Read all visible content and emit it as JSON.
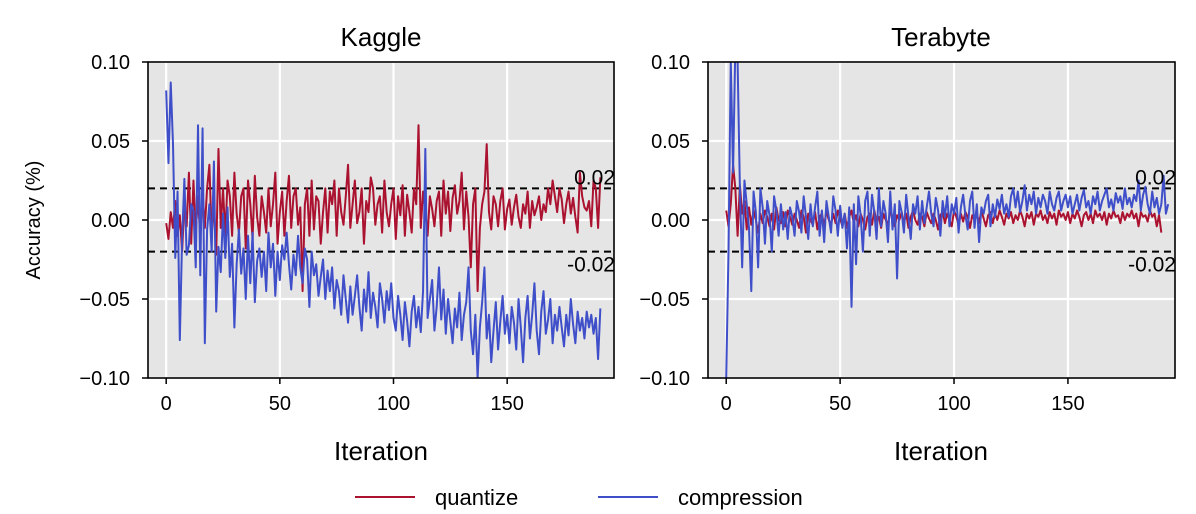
{
  "figure": {
    "legend": {
      "placement": "bottom-center",
      "entries": [
        {
          "label": "quantize",
          "color": "#ab1230"
        },
        {
          "label": "compression",
          "color": "#3f4fc9"
        }
      ]
    }
  },
  "chart_data": [
    {
      "type": "line",
      "title": "Kaggle",
      "xlabel": "Iteration",
      "ylabel": "Accuracy (%)",
      "xlim": [
        -8,
        197
      ],
      "ylim": [
        -0.1,
        0.1
      ],
      "xticks": [
        0,
        50,
        100,
        150
      ],
      "yticks": [
        0.1,
        0.05,
        0.0,
        -0.05,
        -0.1
      ],
      "ytick_labels": [
        "0.10",
        "0.05",
        "0.00",
        "−0.05",
        "−0.10"
      ],
      "grid": true,
      "reference_lines": [
        {
          "y": 0.02,
          "label": "0.02",
          "style": "dashed"
        },
        {
          "y": -0.02,
          "label": "-0.02",
          "style": "dashed"
        }
      ],
      "series": [
        {
          "name": "quantize",
          "color": "#ab1230",
          "x_start": 0,
          "values": [
            -0.002,
            -0.012,
            0.005,
            -0.005,
            0.012,
            -0.01,
            0.003,
            -0.02,
            0.01,
            -0.004,
            0.03,
            -0.015,
            0.025,
            -0.008,
            0.015,
            -0.012,
            0.018,
            -0.005,
            0.02,
            0.035,
            -0.01,
            0.01,
            -0.022,
            0.045,
            -0.005,
            0.02,
            -0.01,
            0.025,
            0.015,
            -0.01,
            0.03,
            0.004,
            -0.008,
            0.015,
            0.02,
            -0.018,
            0.025,
            0.01,
            -0.012,
            0.028,
            0.002,
            -0.01,
            0.015,
            0.005,
            -0.008,
            0.02,
            -0.004,
            0.01,
            0.03,
            -0.015,
            0.005,
            0.018,
            -0.01,
            0.012,
            0.028,
            -0.005,
            0.015,
            0.02,
            -0.003,
            0.008,
            -0.045,
            0.01,
            0.02,
            -0.01,
            0.025,
            -0.006,
            0.015,
            0.012,
            -0.015,
            0.005,
            0.02,
            -0.008,
            0.018,
            0.01,
            0.025,
            -0.01,
            0.02,
            0.005,
            -0.003,
            0.015,
            0.035,
            -0.005,
            0.01,
            0.025,
            -0.002,
            0.005,
            0.02,
            -0.015,
            0.012,
            0.005,
            0.027,
            0.02,
            -0.003,
            0.01,
            0.015,
            -0.008,
            0.025,
            0.005,
            -0.004,
            0.01,
            0.02,
            -0.012,
            0.015,
            0.003,
            0.022,
            -0.01,
            0.016,
            0.005,
            -0.008,
            0.02,
            0.01,
            0.06,
            -0.005,
            0.018,
            0.005,
            -0.01,
            0.015,
            0.007,
            -0.004,
            0.012,
            0.018,
            -0.01,
            0.025,
            0.004,
            0.018,
            -0.007,
            0.014,
            0.022,
            0.004,
            0.012,
            0.03,
            -0.006,
            0.018,
            0.002,
            -0.03,
            0.01,
            0.02,
            -0.045,
            -0.005,
            0.01,
            0.018,
            0.048,
            0.005,
            -0.006,
            0.015,
            0.01,
            -0.004,
            0.012,
            0.02,
            -0.006,
            0.007,
            0.013,
            -0.003,
            0.008,
            0.016,
            0.002,
            -0.005,
            0.01,
            0.004,
            0.018,
            -0.005,
            0.012,
            0.003,
            0.008,
            0.015,
            0.0,
            0.01,
            0.005,
            0.02,
            0.01,
            0.025,
            0.015,
            0.005,
            0.02,
            0.013,
            -0.002,
            0.01,
            0.018,
            0.004,
            0.014,
            0.002,
            -0.008,
            0.03,
            0.015,
            0.008,
            0.006,
            0.012,
            -0.004,
            0.025,
            0.02,
            -0.005,
            0.027
          ]
        },
        {
          "name": "compression",
          "color": "#3f4fc9",
          "x_start": 0,
          "values": [
            0.082,
            0.036,
            0.087,
            0.048,
            -0.024,
            0.018,
            -0.076,
            -0.012,
            0.026,
            -0.022,
            -0.016,
            0.01,
            0.006,
            -0.03,
            0.06,
            -0.035,
            0.058,
            -0.078,
            -0.006,
            0.01,
            -0.02,
            0.037,
            -0.058,
            -0.017,
            -0.033,
            0.004,
            -0.024,
            0.008,
            -0.036,
            -0.015,
            -0.068,
            -0.028,
            -0.006,
            -0.034,
            -0.018,
            -0.05,
            -0.01,
            -0.04,
            -0.008,
            -0.052,
            -0.026,
            -0.018,
            -0.036,
            -0.02,
            -0.045,
            -0.008,
            -0.03,
            -0.015,
            -0.048,
            -0.02,
            -0.038,
            -0.016,
            -0.025,
            -0.008,
            -0.028,
            -0.044,
            -0.022,
            -0.035,
            -0.01,
            -0.03,
            -0.04,
            -0.018,
            -0.025,
            -0.055,
            -0.02,
            -0.035,
            -0.028,
            -0.048,
            -0.036,
            -0.025,
            -0.05,
            -0.032,
            -0.045,
            -0.03,
            -0.056,
            -0.038,
            -0.045,
            -0.06,
            -0.035,
            -0.05,
            -0.065,
            -0.042,
            -0.06,
            -0.048,
            -0.035,
            -0.055,
            -0.07,
            -0.044,
            -0.058,
            -0.033,
            -0.062,
            -0.046,
            -0.055,
            -0.068,
            -0.04,
            -0.05,
            -0.065,
            -0.045,
            -0.057,
            -0.04,
            -0.062,
            -0.07,
            -0.048,
            -0.06,
            -0.076,
            -0.052,
            -0.064,
            -0.08,
            -0.058,
            -0.048,
            -0.068,
            -0.055,
            -0.071,
            -0.045,
            0.045,
            -0.062,
            -0.05,
            -0.038,
            -0.07,
            -0.055,
            -0.03,
            -0.063,
            -0.044,
            -0.072,
            -0.05,
            -0.064,
            -0.078,
            -0.056,
            -0.068,
            -0.046,
            -0.076,
            -0.06,
            -0.052,
            -0.03,
            -0.07,
            -0.085,
            -0.06,
            -0.1,
            -0.068,
            -0.052,
            -0.03,
            -0.075,
            -0.06,
            -0.09,
            -0.07,
            -0.052,
            -0.082,
            -0.064,
            -0.048,
            -0.072,
            -0.06,
            -0.078,
            -0.055,
            -0.065,
            -0.082,
            -0.05,
            -0.068,
            -0.09,
            -0.062,
            -0.048,
            -0.075,
            -0.06,
            -0.04,
            -0.07,
            -0.085,
            -0.058,
            -0.045,
            -0.072,
            -0.063,
            -0.05,
            -0.078,
            -0.06,
            -0.07,
            -0.055,
            -0.068,
            -0.08,
            -0.06,
            -0.073,
            -0.05,
            -0.066,
            -0.078,
            -0.058,
            -0.07,
            -0.062,
            -0.075,
            -0.058,
            -0.068,
            -0.06,
            -0.072,
            -0.062,
            -0.088,
            -0.056
          ]
        }
      ]
    },
    {
      "type": "line",
      "title": "Terabyte",
      "xlabel": "Iteration",
      "ylabel": "",
      "xlim": [
        -8,
        197
      ],
      "ylim": [
        -0.1,
        0.1
      ],
      "xticks": [
        0,
        50,
        100,
        150
      ],
      "yticks": [
        0.1,
        0.05,
        0.0,
        -0.05,
        -0.1
      ],
      "ytick_labels": [
        "0.10",
        "0.05",
        "0.00",
        "−0.05",
        "−0.10"
      ],
      "grid": true,
      "reference_lines": [
        {
          "y": 0.02,
          "label": "0.02",
          "style": "dashed"
        },
        {
          "y": -0.02,
          "label": "-0.02",
          "style": "dashed"
        }
      ],
      "series": [
        {
          "name": "quantize",
          "color": "#ab1230",
          "x_start": 0,
          "values": [
            0.006,
            -0.004,
            0.01,
            0.035,
            0.02,
            -0.01,
            0.022,
            0.004,
            0.012,
            -0.006,
            0.008,
            -0.003,
            0.006,
            0.0,
            -0.008,
            0.004,
            -0.002,
            0.006,
            0.002,
            -0.004,
            0.004,
            -0.006,
            0.008,
            0.0,
            -0.002,
            0.005,
            -0.004,
            0.006,
            0.002,
            -0.003,
            0.004,
            0.0,
            -0.005,
            0.006,
            0.002,
            -0.008,
            0.004,
            0.0,
            -0.003,
            0.005,
            -0.006,
            0.002,
            0.004,
            -0.004,
            0.006,
            0.0,
            -0.003,
            0.004,
            -0.002,
            0.006,
            0.001,
            -0.004,
            0.004,
            -0.005,
            0.002,
            0.006,
            -0.002,
            0.003,
            -0.004,
            0.004,
            0.0,
            -0.006,
            0.002,
            0.004,
            -0.003,
            0.006,
            -0.001,
            0.002,
            -0.005,
            0.004,
            0.0,
            -0.003,
            0.006,
            0.002,
            -0.004,
            0.003,
            0.0,
            0.005,
            -0.002,
            0.004,
            -0.005,
            0.002,
            0.006,
            0.0,
            -0.003,
            0.004,
            0.002,
            -0.004,
            0.005,
            0.001,
            -0.002,
            0.004,
            0.0,
            -0.006,
            0.003,
            0.005,
            -0.002,
            0.004,
            0.0,
            -0.004,
            0.006,
            0.002,
            -0.003,
            0.004,
            -0.001,
            0.005,
            0.002,
            -0.005,
            0.003,
            0.0,
            0.004,
            -0.002,
            0.006,
            0.001,
            -0.004,
            0.003,
            0.005,
            -0.002,
            0.004,
            0.0,
            0.006,
            0.002,
            -0.003,
            0.004,
            0.001,
            0.005,
            -0.002,
            0.003,
            0.0,
            0.006,
            0.002,
            -0.004,
            0.004,
            0.001,
            0.005,
            -0.003,
            0.004,
            0.002,
            0.006,
            0.0,
            0.003,
            -0.002,
            0.005,
            0.001,
            0.004,
            -0.003,
            0.006,
            0.002,
            0.004,
            0.0,
            0.005,
            -0.002,
            0.004,
            0.001,
            0.006,
            0.002,
            -0.004,
            0.003,
            0.005,
            0.0,
            0.004,
            -0.002,
            0.006,
            0.002,
            0.004,
            0.0,
            0.005,
            -0.003,
            0.004,
            0.001,
            0.006,
            0.002,
            0.003,
            -0.002,
            0.005,
            0.0,
            0.004,
            0.002,
            0.006,
            0.001,
            0.004,
            -0.004,
            0.005,
            0.002,
            0.003,
            -0.001,
            0.006,
            0.002,
            0.004,
            -0.004,
            0.003,
            -0.008
          ]
        },
        {
          "name": "compression",
          "color": "#3f4fc9",
          "x_start": 0,
          "values": [
            -0.1,
            -0.02,
            0.1,
            0.03,
            0.11,
            0.1,
            0.02,
            -0.03,
            0.025,
            0.01,
            -0.005,
            -0.045,
            0.018,
            0.005,
            -0.03,
            0.02,
            0.008,
            -0.015,
            0.012,
            0.003,
            -0.02,
            0.015,
            0.006,
            -0.01,
            0.01,
            -0.006,
            0.005,
            -0.012,
            0.008,
            0.002,
            -0.01,
            0.012,
            0.005,
            -0.008,
            0.015,
            0.002,
            -0.012,
            0.01,
            -0.004,
            0.008,
            0.018,
            -0.01,
            0.006,
            -0.014,
            0.012,
            0.002,
            -0.008,
            0.015,
            0.006,
            -0.01,
            0.009,
            -0.005,
            0.004,
            -0.018,
            0.008,
            -0.055,
            0.01,
            -0.028,
            0.015,
            0.003,
            -0.02,
            0.012,
            0.018,
            -0.01,
            0.016,
            0.005,
            -0.012,
            0.02,
            -0.004,
            0.012,
            0.004,
            -0.014,
            0.018,
            -0.006,
            0.01,
            -0.037,
            0.012,
            0.005,
            -0.008,
            0.016,
            0.002,
            -0.012,
            0.01,
            0.004,
            0.015,
            -0.006,
            0.012,
            -0.002,
            0.008,
            0.018,
            0.004,
            -0.004,
            0.014,
            0.006,
            -0.01,
            0.012,
            0.002,
            0.015,
            -0.004,
            0.01,
            0.004,
            0.014,
            -0.008,
            0.008,
            0.016,
            0.003,
            -0.006,
            0.012,
            0.018,
            -0.005,
            0.01,
            -0.014,
            0.008,
            0.004,
            0.012,
            0.016,
            -0.004,
            0.01,
            0.002,
            0.013,
            0.007,
            0.016,
            0.004,
            0.01,
            0.002,
            0.015,
            0.02,
            0.008,
            0.018,
            0.005,
            0.012,
            0.022,
            0.006,
            0.016,
            0.01,
            0.018,
            0.004,
            0.014,
            0.008,
            0.016,
            0.012,
            0.004,
            0.018,
            0.01,
            0.006,
            0.014,
            0.018,
            0.006,
            0.012,
            0.016,
            0.008,
            0.015,
            0.004,
            0.01,
            0.016,
            0.006,
            0.014,
            0.019,
            0.008,
            0.012,
            0.004,
            0.015,
            0.01,
            0.018,
            0.006,
            0.012,
            0.016,
            0.02,
            0.008,
            0.013,
            0.006,
            0.017,
            0.011,
            0.015,
            0.007,
            0.02,
            0.01,
            0.014,
            0.008,
            0.016,
            0.012,
            0.025,
            0.006,
            0.016,
            0.021,
            0.01,
            0.004,
            0.018,
            0.008,
            0.014,
            0.004,
            0.01,
            0.028,
            0.004,
            0.01
          ]
        }
      ]
    }
  ]
}
